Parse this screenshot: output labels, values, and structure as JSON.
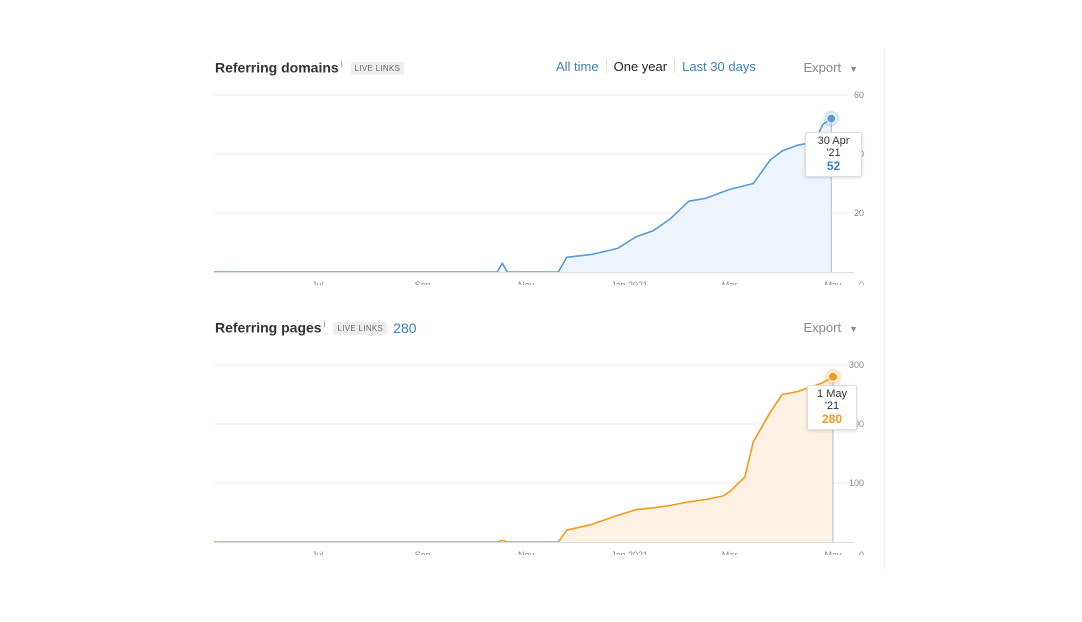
{
  "colors": {
    "domains_line": "#5b9bd5",
    "domains_fill": "#eef4fc",
    "pages_line": "#f29a1e",
    "pages_fill": "#fdf1e4",
    "link": "#3e7fb8",
    "grid": "#e9ecef"
  },
  "time_range": {
    "options": [
      "All time",
      "One year",
      "Last 30 days"
    ],
    "selected": "One year"
  },
  "export_label": "Export",
  "caret_icon": "caret-down-icon",
  "domains": {
    "title": "Referring domains",
    "info": "i",
    "badge": "LIVE LINKS",
    "tooltip_date": "30 Apr '21",
    "tooltip_value": "52"
  },
  "pages": {
    "title": "Referring pages",
    "info": "i",
    "badge": "LIVE LINKS",
    "count": "280",
    "tooltip_date": "1 May '21",
    "tooltip_value": "280"
  },
  "chart_data": [
    {
      "type": "area",
      "title": "Referring domains",
      "x_ticks": [
        "Jul",
        "Sep",
        "Nov",
        "Jan 2021",
        "Mar",
        "May"
      ],
      "y_ticks": [
        0,
        20,
        40,
        60
      ],
      "ylim": [
        0,
        60
      ],
      "grid": true,
      "series": [
        {
          "x": [
            "2020-05-01",
            "2020-10-15",
            "2020-10-18",
            "2020-10-21",
            "2020-11-20",
            "2020-11-25",
            "2020-12-10",
            "2020-12-25",
            "2021-01-05",
            "2021-01-15",
            "2021-01-25",
            "2021-02-05",
            "2021-02-15",
            "2021-03-01",
            "2021-03-15",
            "2021-03-25",
            "2021-04-01",
            "2021-04-10",
            "2021-04-20",
            "2021-04-25",
            "2021-04-30"
          ],
          "y": [
            0,
            0,
            3,
            0,
            0,
            5,
            6,
            8,
            12,
            14,
            18,
            24,
            25,
            28,
            30,
            38,
            41,
            43,
            44,
            50,
            52
          ]
        }
      ]
    },
    {
      "type": "area",
      "title": "Referring pages",
      "x_ticks": [
        "Jul",
        "Sep",
        "Nov",
        "Jan 2021",
        "Mar",
        "May"
      ],
      "y_ticks": [
        0,
        100,
        200,
        300
      ],
      "ylim": [
        0,
        300
      ],
      "grid": true,
      "series": [
        {
          "x": [
            "2020-05-01",
            "2020-10-15",
            "2020-10-18",
            "2020-10-21",
            "2020-11-20",
            "2020-11-25",
            "2020-12-10",
            "2020-12-25",
            "2021-01-05",
            "2021-01-15",
            "2021-01-25",
            "2021-02-05",
            "2021-02-15",
            "2021-02-25",
            "2021-03-01",
            "2021-03-10",
            "2021-03-15",
            "2021-03-25",
            "2021-04-01",
            "2021-04-10",
            "2021-04-20",
            "2021-04-25",
            "2021-05-01"
          ],
          "y": [
            0,
            0,
            3,
            0,
            0,
            20,
            30,
            45,
            55,
            58,
            62,
            68,
            72,
            78,
            85,
            110,
            170,
            220,
            250,
            255,
            265,
            270,
            280
          ]
        }
      ]
    }
  ]
}
